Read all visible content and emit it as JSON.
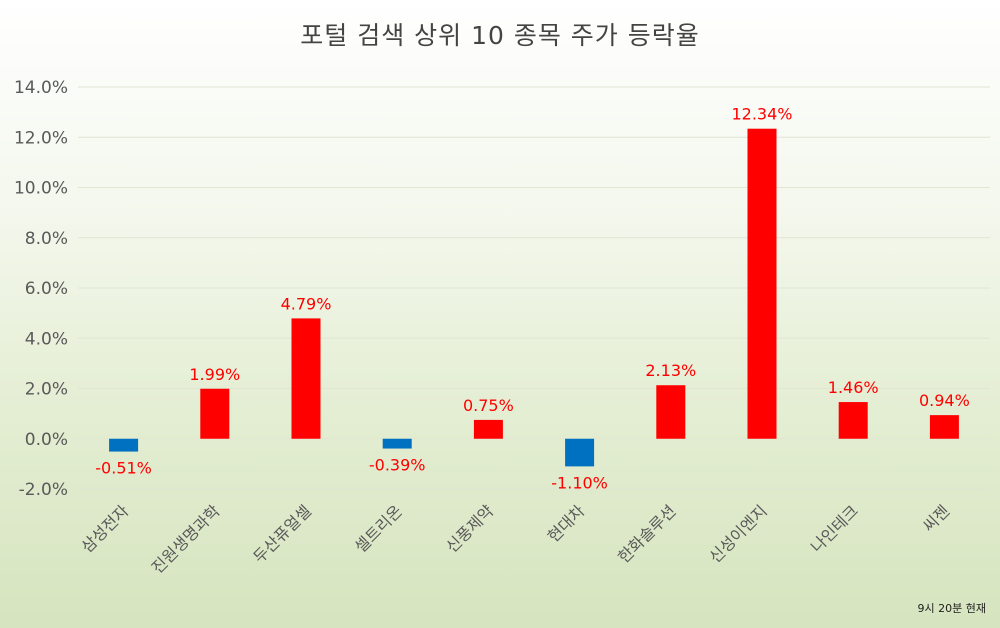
{
  "chart_data": {
    "type": "bar",
    "title": "포털 검색 상위 10 종목 주가 등락율",
    "xlabel": "",
    "ylabel": "",
    "categories": [
      "삼성전자",
      "진원생명과학",
      "두산퓨얼셀",
      "셀트리온",
      "신풍제약",
      "현대차",
      "한화솔루션",
      "신성이엔지",
      "나인테크",
      "씨젠"
    ],
    "values": [
      -0.51,
      1.99,
      4.79,
      -0.39,
      0.75,
      -1.1,
      2.13,
      12.34,
      1.46,
      0.94
    ],
    "data_labels": [
      "-0.51%",
      "1.99%",
      "4.79%",
      "-0.39%",
      "0.75%",
      "-1.10%",
      "2.13%",
      "12.34%",
      "1.46%",
      "0.94%"
    ],
    "ylim": [
      -2,
      14
    ],
    "yticks": [
      -2,
      0,
      2,
      4,
      6,
      8,
      10,
      12,
      14
    ],
    "ytick_labels": [
      "-2.0%",
      "0.0%",
      "2.0%",
      "4.0%",
      "6.0%",
      "8.0%",
      "10.0%",
      "12.0%",
      "14.0%"
    ],
    "grid": true,
    "colors": {
      "positive": "#ff0000",
      "negative": "#0070c0",
      "label": "#ff0000",
      "axis_text": "#595959",
      "grid": "#dfe6d2"
    }
  },
  "footnote": "9시 20분 현재"
}
